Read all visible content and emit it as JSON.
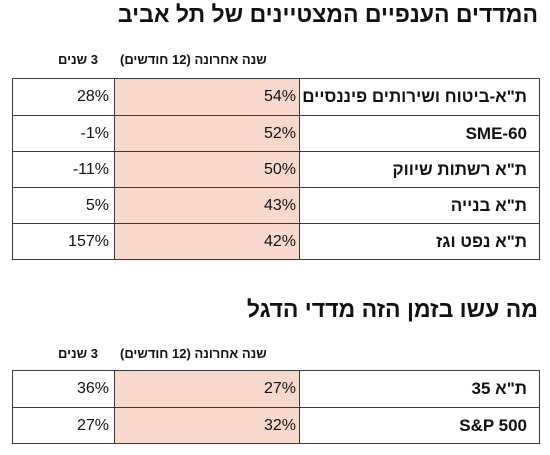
{
  "section1": {
    "title": "המדדים הענפיים המצטיינים של תל אביב",
    "col_year": "שנה אחרונה (12 חודשים)",
    "col_3y": "3 שנים",
    "rows": [
      {
        "label": "ת\"א-ביטוח ושירותים פיננסיים",
        "year": "54%",
        "three": "28%"
      },
      {
        "label": "SME-60",
        "year": "52%",
        "three": "-1%"
      },
      {
        "label": "ת\"א רשתות שיווק",
        "year": "50%",
        "three": "-11%"
      },
      {
        "label": "ת\"א בנייה",
        "year": "43%",
        "three": "5%"
      },
      {
        "label": "ת\"א נפט וגז",
        "year": "42%",
        "three": "157%"
      }
    ]
  },
  "section2": {
    "title": "מה עשו בזמן הזה מדדי הדגל",
    "col_year": "שנה אחרונה (12 חודשים)",
    "col_3y": "3 שנים",
    "rows": [
      {
        "label": "ת\"א 35",
        "year": "27%",
        "three": "36%"
      },
      {
        "label": "S&P 500",
        "year": "32%",
        "three": "27%"
      }
    ]
  },
  "colors": {
    "highlight": "#f9d8cc",
    "border": "#3a3a3a",
    "text": "#111111"
  }
}
